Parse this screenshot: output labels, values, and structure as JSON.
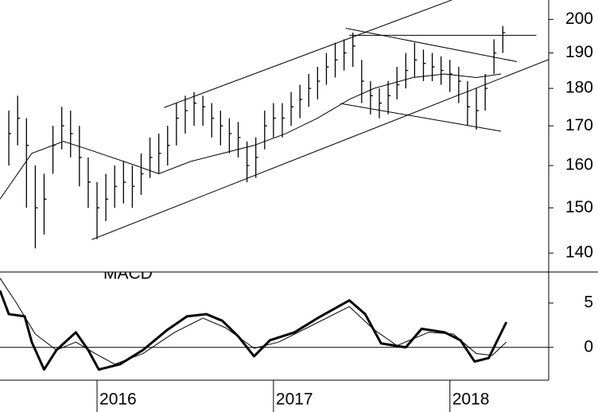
{
  "chart_data": [
    {
      "type": "hlc",
      "xlim": [
        2015.45,
        2018.56
      ],
      "xticks": [
        2016,
        2017,
        2018
      ],
      "ylim": [
        136,
        206
      ],
      "yticks": [
        140,
        150,
        160,
        170,
        180,
        190,
        200
      ],
      "log_scale": true,
      "color": "#000000",
      "bars": {
        "x": [
          2015.5,
          2015.55,
          2015.6,
          2015.65,
          2015.7,
          2015.75,
          2015.8,
          2015.85,
          2015.9,
          2015.95,
          2016,
          2016.05,
          2016.1,
          2016.15,
          2016.2,
          2016.25,
          2016.3,
          2016.35,
          2016.4,
          2016.45,
          2016.5,
          2016.55,
          2016.6,
          2016.65,
          2016.7,
          2016.75,
          2016.8,
          2016.85,
          2016.9,
          2016.95,
          2017,
          2017.05,
          2017.1,
          2017.15,
          2017.2,
          2017.25,
          2017.3,
          2017.35,
          2017.4,
          2017.45,
          2017.5,
          2017.55,
          2017.6,
          2017.65,
          2017.7,
          2017.75,
          2017.8,
          2017.85,
          2017.9,
          2017.95,
          2018,
          2018.05,
          2018.1,
          2018.15,
          2018.2,
          2018.25,
          2018.3
        ],
        "high": [
          174,
          178,
          172,
          160,
          158,
          170,
          175,
          174,
          170,
          162,
          156,
          158,
          160,
          161,
          160,
          163,
          167,
          168,
          170,
          176,
          178,
          179,
          178,
          176,
          174,
          172,
          171,
          166,
          167,
          174,
          176,
          176,
          179,
          181,
          184,
          186,
          190,
          193,
          194,
          196,
          188,
          182,
          180,
          182,
          186,
          190,
          193,
          191,
          190,
          189,
          188,
          186,
          182,
          180,
          184,
          194,
          198
        ],
        "low": [
          160,
          165,
          150,
          141,
          144,
          158,
          164,
          162,
          155,
          150,
          143,
          147,
          150,
          151,
          150,
          153,
          157,
          158,
          160,
          165,
          168,
          170,
          170,
          167,
          165,
          163,
          162,
          156,
          157,
          164,
          167,
          167,
          170,
          172,
          175,
          177,
          181,
          183,
          185,
          186,
          176,
          173,
          172,
          173,
          177,
          180,
          183,
          182,
          182,
          181,
          179,
          176,
          170,
          169,
          174,
          184,
          190
        ],
        "close": [
          168,
          172,
          165,
          150,
          152,
          165,
          170,
          168,
          162,
          156,
          150,
          152,
          155,
          156,
          155,
          158,
          162,
          163,
          165,
          172,
          174,
          176,
          175,
          172,
          170,
          168,
          167,
          160,
          162,
          170,
          172,
          172,
          175,
          177,
          180,
          182,
          186,
          188,
          190,
          192,
          182,
          178,
          176,
          178,
          181,
          185,
          188,
          187,
          186,
          185,
          184,
          182,
          175,
          174,
          180,
          190,
          196
        ]
      },
      "moving_average": {
        "x": [
          2015.45,
          2015.63,
          2015.81,
          2015.95,
          2016.22,
          2016.35,
          2016.53,
          2016.71,
          2016.89,
          2017.07,
          2017.25,
          2017.43,
          2017.57,
          2017.79,
          2017.97,
          2018.15,
          2018.29
        ],
        "values": [
          152,
          163,
          166,
          164,
          160,
          158,
          161,
          163,
          165,
          168,
          172,
          177,
          180,
          183,
          184,
          183,
          184
        ]
      },
      "trend_lines": [
        {
          "x": [
            2016.38,
            2018.02
          ],
          "y": [
            174.8,
            206.2
          ]
        },
        {
          "x": [
            2015.97,
            2018.56
          ],
          "y": [
            142.9,
            188.1
          ]
        },
        {
          "x": [
            2017.43,
            2018.49
          ],
          "y": [
            195.2,
            195.2
          ]
        },
        {
          "x": [
            2017.41,
            2018.38
          ],
          "y": [
            197.3,
            187.5
          ]
        },
        {
          "x": [
            2017.38,
            2018.29
          ],
          "y": [
            175.9,
            168.6
          ]
        }
      ]
    },
    {
      "type": "line",
      "title": "MACD",
      "xlim": [
        2015.45,
        2018.56
      ],
      "xticks": [
        2016,
        2017,
        2018
      ],
      "ylim": [
        -3.7,
        8.5
      ],
      "yticks": [
        0,
        5
      ],
      "reference_line": 0,
      "series": [
        {
          "color": "#000000",
          "width": 3,
          "x": [
            2015.45,
            2015.5,
            2015.59,
            2015.63,
            2015.7,
            2015.77,
            2015.88,
            2015.95,
            2016.01,
            2016.13,
            2016.26,
            2016.4,
            2016.51,
            2016.62,
            2016.71,
            2016.8,
            2016.89,
            2016.98,
            2017.12,
            2017.25,
            2017.43,
            2017.52,
            2017.61,
            2017.75,
            2017.84,
            2017.97,
            2018.06,
            2018.14,
            2018.22,
            2018.32
          ],
          "values": [
            6.4,
            3.75,
            3.5,
            0.6,
            -2.5,
            -0.3,
            1.7,
            -0.3,
            -2.5,
            -1.9,
            -0.3,
            2.0,
            3.5,
            3.75,
            3.0,
            1.25,
            -1.0,
            0.8,
            1.7,
            3.3,
            5.3,
            3.75,
            0.45,
            0,
            2.1,
            1.7,
            0.8,
            -1.6,
            -1.2,
            2.85
          ]
        },
        {
          "color": "#000000",
          "width": 1,
          "x": [
            2015.45,
            2015.54,
            2015.65,
            2015.77,
            2015.88,
            2015.99,
            2016.1,
            2016.26,
            2016.44,
            2016.6,
            2016.73,
            2016.89,
            2017.03,
            2017.21,
            2017.43,
            2017.57,
            2017.7,
            2017.88,
            2018.02,
            2018.15,
            2018.24,
            2018.32
          ],
          "values": [
            7.8,
            5.1,
            1.5,
            -0.3,
            0.6,
            -0.7,
            -1.9,
            -0.7,
            1.7,
            3.3,
            2.2,
            -0.1,
            0.6,
            2.4,
            4.6,
            2.0,
            0.2,
            1.7,
            1.5,
            -0.7,
            -0.9,
            0.6
          ]
        }
      ]
    }
  ]
}
